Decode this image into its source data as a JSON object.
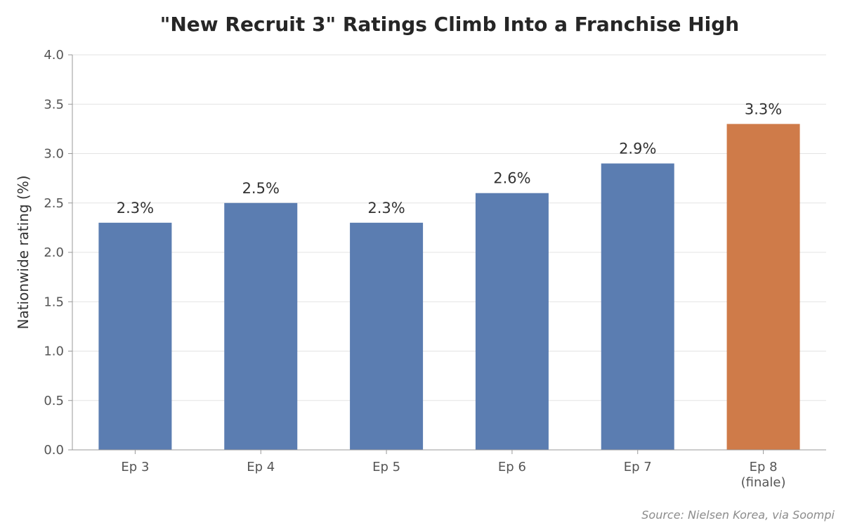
{
  "chart_data": {
    "type": "bar",
    "title": "\"New Recruit 3\" Ratings Climb Into a Franchise High",
    "xlabel": "",
    "ylabel": "Nationwide rating (%)",
    "categories": [
      "Ep 3",
      "Ep 4",
      "Ep 5",
      "Ep 6",
      "Ep 7",
      "Ep 8\n(finale)"
    ],
    "values": [
      2.3,
      2.5,
      2.3,
      2.6,
      2.9,
      3.3
    ],
    "data_labels": [
      "2.3%",
      "2.5%",
      "2.3%",
      "2.6%",
      "2.9%",
      "3.3%"
    ],
    "ylim": [
      0,
      4.0
    ],
    "yticks": [
      "0.0",
      "0.5",
      "1.0",
      "1.5",
      "2.0",
      "2.5",
      "3.0",
      "3.5",
      "4.0"
    ],
    "grid": "horizontal",
    "legend": "none",
    "colors": {
      "default_bar": "#5b7db1",
      "highlight_bar": "#cf7b49",
      "gridline": "#e3e3e3",
      "axis": "#999999"
    },
    "highlight_index": 5,
    "source": "Source: Nielsen Korea, via Soompi"
  }
}
